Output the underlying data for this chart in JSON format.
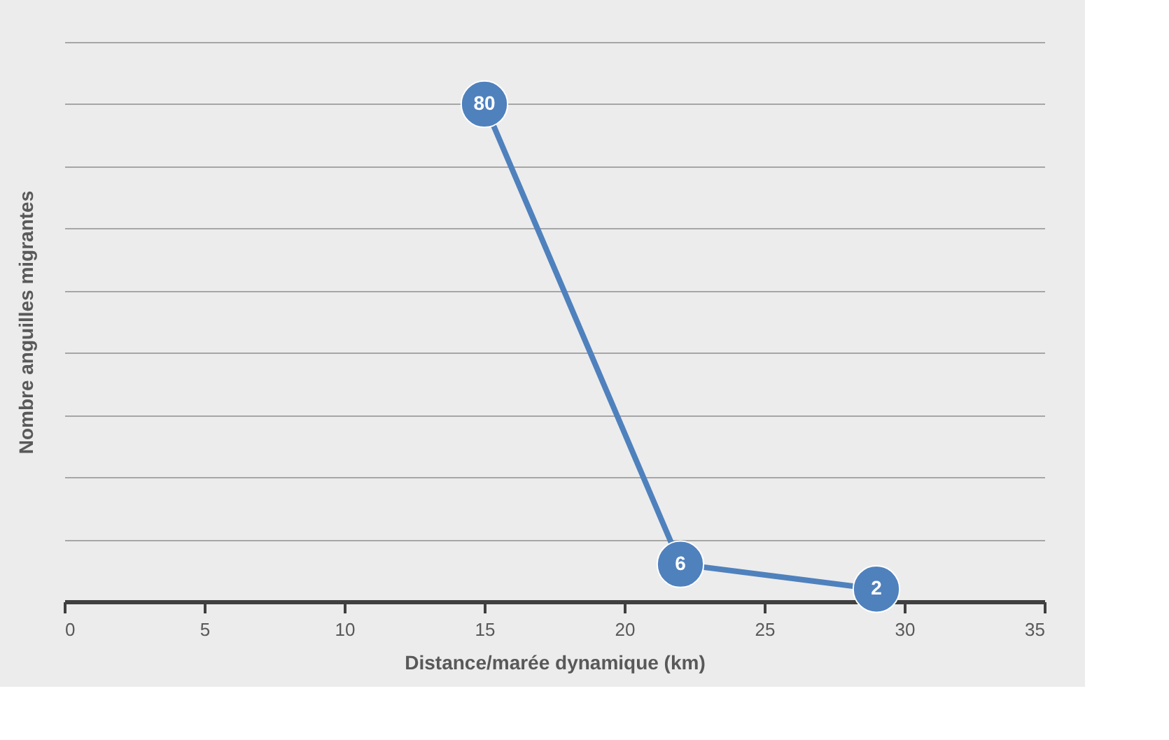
{
  "chart_data": {
    "type": "line",
    "xlabel": "Distance/marée dynamique (km)",
    "ylabel": "Nombre anguilles migrantes",
    "x": [
      15,
      22,
      29
    ],
    "series": [
      {
        "color": "#4f81bd",
        "values": [
          80,
          6,
          2
        ]
      }
    ],
    "xlim": [
      0,
      35
    ],
    "xticks": [
      0,
      5,
      10,
      15,
      20,
      25,
      30,
      35
    ],
    "ylim": [
      0,
      90
    ],
    "yticks": [
      {
        "value": 0,
        "label": null
      },
      {
        "value": 10,
        "label": null
      },
      {
        "value": 20,
        "label": null
      },
      {
        "value": 30,
        "label": null
      },
      {
        "value": 40,
        "label": null
      },
      {
        "value": 50,
        "label": null
      },
      {
        "value": 60,
        "label": null
      },
      {
        "value": 70,
        "label": null
      },
      {
        "value": 80,
        "label": null
      },
      {
        "value": 90,
        "label": null
      }
    ],
    "grid": "y",
    "tick_labels": "x",
    "data_labels": true,
    "marker": "circle",
    "line_style": "solid"
  }
}
